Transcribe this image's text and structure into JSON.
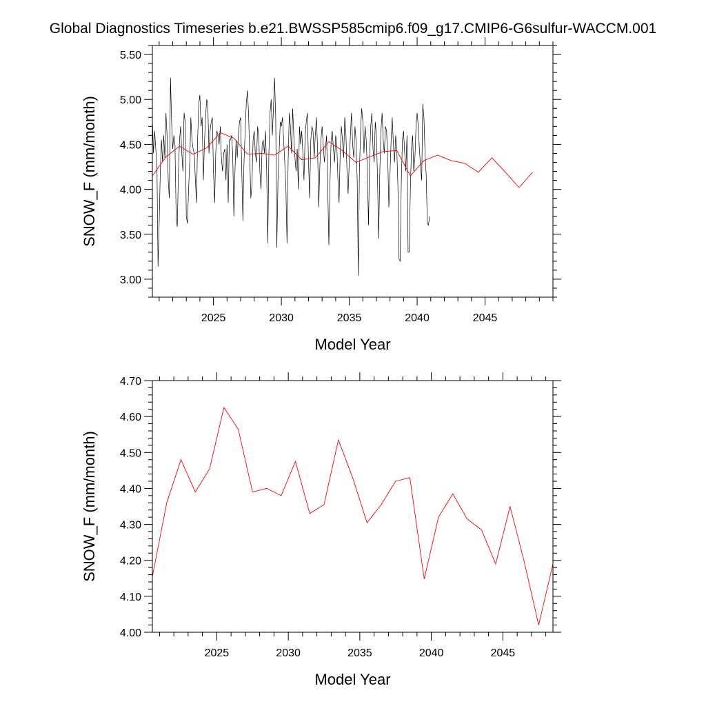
{
  "title": "Global Diagnostics Timeseries b.e21.BWSSP585cmip6.f09_g17.CMIP6-G6sulfur-WACCM.001",
  "colors": {
    "monthly": "#000000",
    "annual": "#ff0000",
    "axes": "#000000"
  },
  "chart_data": [
    {
      "type": "line",
      "xlabel": "Model Year",
      "ylabel": "SNOW_F (mm/month)",
      "xlim": [
        2020.5,
        2050.0
      ],
      "ylim": [
        2.8,
        5.6
      ],
      "x_ticks": [
        2025,
        2030,
        2035,
        2040,
        2045
      ],
      "x_tick_labels": [
        "2025",
        "2030",
        "2035",
        "2040",
        "2045"
      ],
      "y_ticks": [
        3.0,
        3.5,
        4.0,
        4.5,
        5.0,
        5.5
      ],
      "y_tick_labels": [
        "3.00",
        "3.50",
        "4.00",
        "4.50",
        "5.00",
        "5.50"
      ],
      "series": [
        {
          "kind": "monthly",
          "x_start": 2020.5,
          "x_step": 0.08333,
          "values": [
            4.78,
            4.4,
            4.65,
            4.45,
            4.3,
            3.14,
            3.6,
            4.2,
            4.55,
            4.3,
            4.6,
            4.35,
            4.85,
            4.6,
            4.1,
            3.9,
            5.24,
            4.75,
            4.45,
            4.6,
            4.5,
            3.7,
            3.58,
            4.15,
            4.55,
            4.7,
            4.4,
            4.2,
            4.85,
            4.75,
            3.7,
            3.62,
            4.0,
            4.3,
            4.8,
            4.55,
            4.45,
            4.4,
            4.1,
            3.85,
            4.55,
            4.95,
            5.05,
            4.7,
            4.8,
            4.1,
            4.5,
            4.8,
            5.0,
            4.95,
            4.4,
            4.65,
            4.75,
            4.8,
            4.2,
            3.85,
            4.4,
            4.65,
            4.6,
            4.5,
            4.7,
            4.35,
            4.2,
            4.4,
            4.45,
            4.1,
            4.5,
            3.85,
            4.55,
            4.55,
            4.6,
            4.4,
            3.7,
            4.2,
            4.55,
            4.35,
            4.6,
            4.75,
            4.8,
            4.2,
            3.65,
            4.3,
            4.65,
            4.95,
            5.1,
            4.85,
            4.4,
            3.9,
            4.05,
            4.55,
            4.65,
            4.4,
            4.3,
            4.7,
            4.6,
            4.2,
            4.0,
            4.5,
            4.55,
            4.4,
            4.65,
            4.2,
            3.4,
            4.4,
            4.85,
            5.0,
            4.6,
            4.9,
            5.24,
            4.8,
            3.35,
            4.1,
            4.4,
            4.75,
            4.7,
            4.8,
            4.55,
            4.3,
            4.0,
            3.4,
            4.3,
            4.85,
            4.7,
            4.4,
            4.9,
            4.6,
            4.35,
            4.2,
            4.45,
            4.0,
            4.7,
            4.5,
            4.65,
            4.4,
            4.1,
            4.6,
            4.75,
            4.85,
            4.3,
            3.9,
            4.55,
            4.7,
            4.65,
            4.35,
            4.6,
            4.8,
            4.45,
            3.8,
            4.25,
            4.55,
            4.7,
            4.5,
            4.3,
            4.45,
            4.6,
            4.0,
            3.38,
            4.1,
            4.55,
            4.65,
            4.45,
            4.3,
            4.6,
            4.5,
            4.1,
            3.85,
            4.4,
            4.7,
            4.55,
            4.35,
            4.8,
            4.65,
            4.2,
            3.95,
            4.3,
            4.6,
            4.85,
            4.5,
            4.35,
            4.7,
            4.55,
            4.1,
            3.04,
            4.2,
            4.65,
            4.9,
            4.75,
            4.4,
            4.7,
            4.55,
            4.2,
            3.6,
            4.35,
            4.7,
            4.85,
            4.45,
            4.3,
            4.75,
            4.6,
            4.1,
            3.45,
            4.2,
            4.65,
            4.85,
            4.55,
            4.4,
            4.7,
            4.65,
            4.35,
            3.8,
            4.15,
            4.55,
            4.8,
            4.5,
            4.3,
            4.6,
            4.45,
            4.05,
            3.22,
            3.2,
            4.1,
            4.55,
            4.65,
            4.4,
            4.2,
            4.6,
            3.3,
            3.3,
            4.0,
            4.45,
            4.6,
            4.2,
            4.35,
            4.7,
            4.85,
            4.7,
            4.45,
            4.25,
            4.1,
            4.95,
            4.8,
            4.4,
            4.15,
            3.62,
            3.6,
            3.7
          ]
        },
        {
          "kind": "annual",
          "x": [
            2020.5,
            2021.5,
            2022.5,
            2023.5,
            2024.5,
            2025.5,
            2026.5,
            2027.5,
            2028.5,
            2029.5,
            2030.5,
            2031.5,
            2032.5,
            2033.5,
            2034.5,
            2035.5,
            2036.5,
            2037.5,
            2038.5,
            2039.5,
            2040.5,
            2041.5,
            2042.5,
            2043.5,
            2044.5,
            2045.5,
            2046.5,
            2047.5,
            2048.5
          ],
          "values": [
            4.15,
            4.36,
            4.48,
            4.39,
            4.46,
            4.63,
            4.57,
            4.39,
            4.4,
            4.38,
            4.48,
            4.33,
            4.35,
            4.53,
            4.43,
            4.3,
            4.36,
            4.42,
            4.43,
            4.15,
            4.32,
            4.38,
            4.32,
            4.29,
            4.19,
            4.35,
            4.19,
            4.02,
            4.19
          ]
        }
      ]
    },
    {
      "type": "line",
      "xlabel": "Model Year",
      "ylabel": "SNOW_F (mm/month)",
      "xlim": [
        2020.5,
        2048.5
      ],
      "ylim": [
        4.0,
        4.7
      ],
      "x_ticks": [
        2025,
        2030,
        2035,
        2040,
        2045
      ],
      "x_tick_labels": [
        "2025",
        "2030",
        "2035",
        "2040",
        "2045"
      ],
      "y_ticks": [
        4.0,
        4.1,
        4.2,
        4.3,
        4.4,
        4.5,
        4.6,
        4.7
      ],
      "y_tick_labels": [
        "4.00",
        "4.10",
        "4.20",
        "4.30",
        "4.40",
        "4.50",
        "4.60",
        "4.70"
      ],
      "series": [
        {
          "kind": "annual",
          "x": [
            2020.5,
            2021.5,
            2022.5,
            2023.5,
            2024.5,
            2025.5,
            2026.5,
            2027.5,
            2028.5,
            2029.5,
            2030.5,
            2031.5,
            2032.5,
            2033.5,
            2034.5,
            2035.5,
            2036.5,
            2037.5,
            2038.5,
            2039.5,
            2040.5,
            2041.5,
            2042.5,
            2043.5,
            2044.5,
            2045.5,
            2046.5,
            2047.5,
            2048.5
          ],
          "values": [
            4.155,
            4.36,
            4.48,
            4.39,
            4.455,
            4.625,
            4.565,
            4.39,
            4.4,
            4.38,
            4.475,
            4.33,
            4.355,
            4.535,
            4.43,
            4.305,
            4.355,
            4.42,
            4.43,
            4.148,
            4.32,
            4.385,
            4.315,
            4.285,
            4.19,
            4.35,
            4.195,
            4.02,
            4.19
          ]
        }
      ]
    }
  ]
}
